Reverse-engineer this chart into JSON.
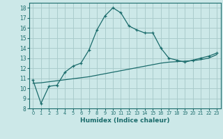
{
  "x": [
    0,
    1,
    2,
    3,
    4,
    5,
    6,
    7,
    8,
    9,
    10,
    11,
    12,
    13,
    14,
    15,
    16,
    17,
    18,
    19,
    20,
    21,
    22,
    23
  ],
  "y_curve": [
    10.8,
    8.5,
    10.2,
    10.3,
    11.6,
    12.2,
    12.5,
    13.8,
    15.8,
    17.2,
    18.0,
    17.5,
    16.2,
    15.8,
    15.5,
    15.5,
    14.0,
    13.0,
    12.8,
    12.6,
    12.8,
    13.0,
    13.2,
    13.5
  ],
  "y_line": [
    10.5,
    10.55,
    10.65,
    10.75,
    10.85,
    10.95,
    11.05,
    11.15,
    11.3,
    11.45,
    11.6,
    11.75,
    11.9,
    12.05,
    12.2,
    12.35,
    12.5,
    12.6,
    12.65,
    12.7,
    12.75,
    12.85,
    13.0,
    13.35
  ],
  "color": "#1a6b6b",
  "bg_color": "#cce8e8",
  "grid_color": "#aacccc",
  "xlabel": "Humidex (Indice chaleur)",
  "ylim": [
    8,
    18.5
  ],
  "xlim": [
    -0.5,
    23.5
  ],
  "yticks": [
    8,
    9,
    10,
    11,
    12,
    13,
    14,
    15,
    16,
    17,
    18
  ],
  "xticks": [
    0,
    1,
    2,
    3,
    4,
    5,
    6,
    7,
    8,
    9,
    10,
    11,
    12,
    13,
    14,
    15,
    16,
    17,
    18,
    19,
    20,
    21,
    22,
    23
  ],
  "xlabel_fontsize": 6.5,
  "ytick_fontsize": 5.5,
  "xtick_fontsize": 4.8
}
